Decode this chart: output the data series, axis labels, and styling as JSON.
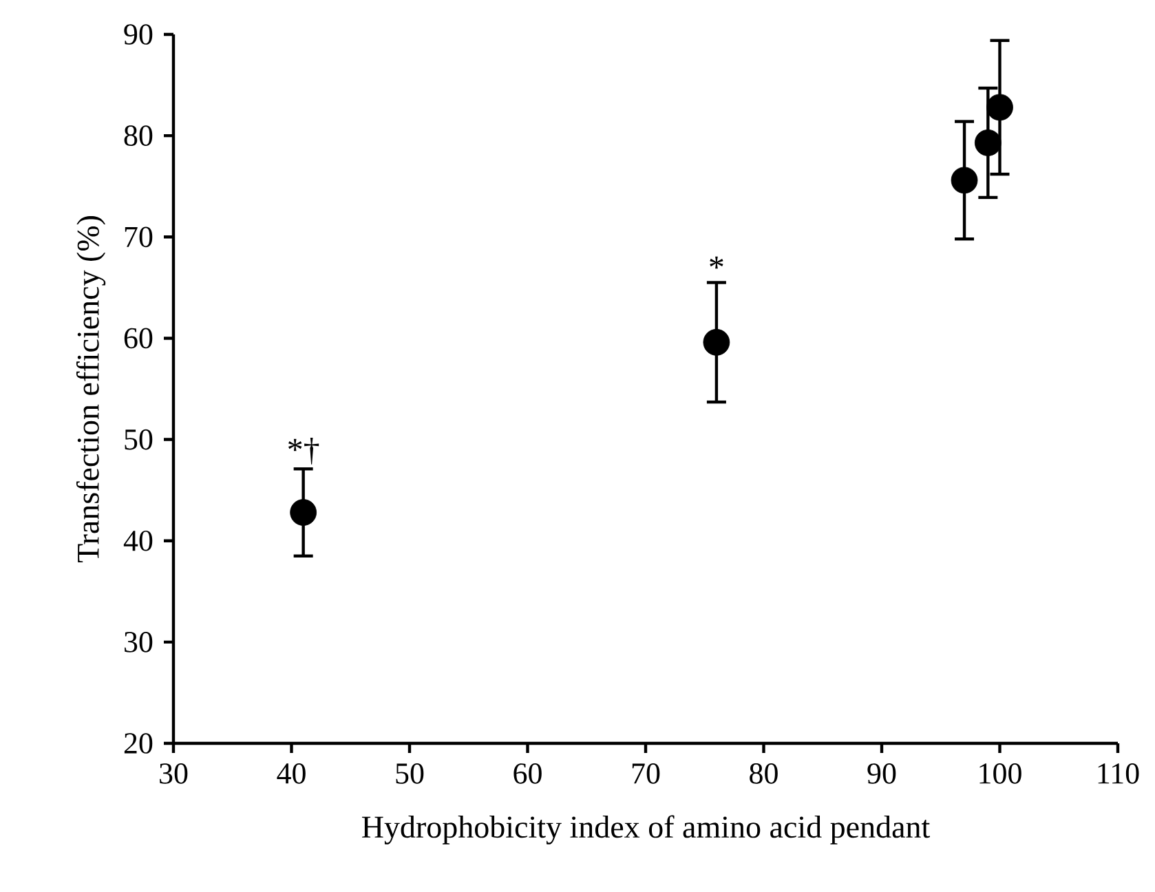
{
  "chart_data": {
    "type": "scatter",
    "xlabel": "Hydrophobicity index of amino acid pendant",
    "ylabel": "Transfection efficiency (%)",
    "x": [
      41,
      76,
      97,
      99,
      100
    ],
    "values": [
      42.8,
      59.6,
      75.6,
      79.3,
      82.8
    ],
    "errors": [
      4.3,
      5.9,
      5.8,
      5.4,
      6.6
    ],
    "color": "#000000",
    "marker": "circle",
    "grid": false,
    "xlim": [
      30,
      110
    ],
    "xticks": [
      30,
      40,
      50,
      60,
      70,
      80,
      90,
      100,
      110
    ],
    "ylim": [
      20,
      90
    ],
    "yticks": [
      20,
      30,
      40,
      50,
      60,
      70,
      80,
      90
    ],
    "annotations": [
      {
        "text": "*†",
        "x": 41,
        "y": 47.1
      },
      {
        "text": "*",
        "x": 76,
        "y": 65.5
      }
    ]
  }
}
